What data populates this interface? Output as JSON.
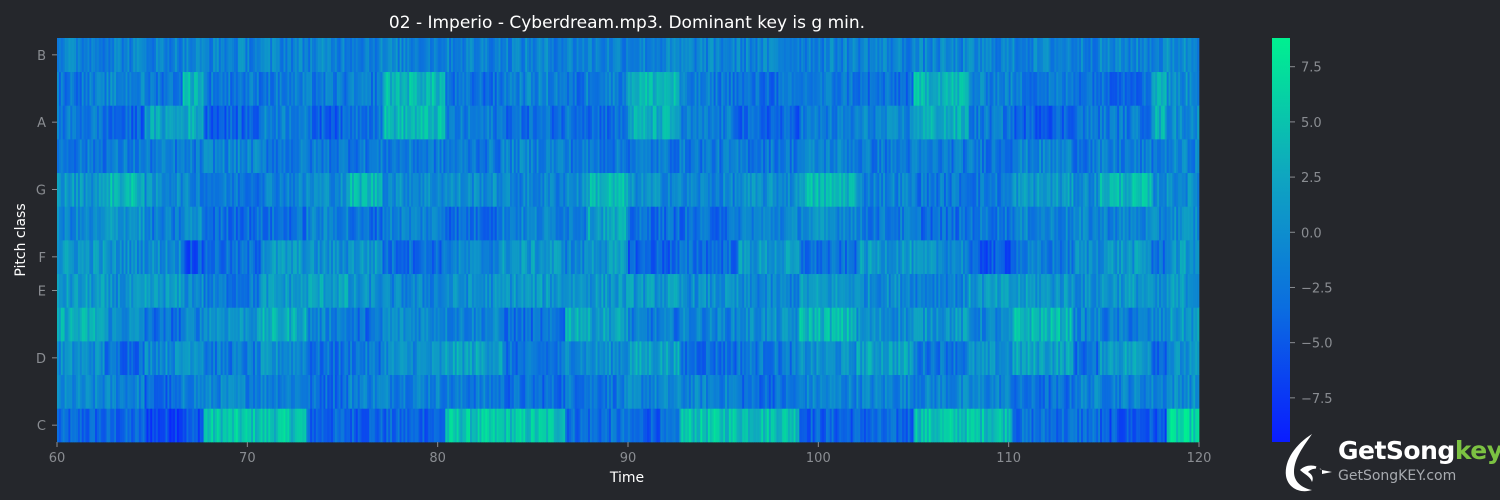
{
  "chart_data": {
    "type": "heatmap",
    "title": "02 - Imperio - Cyberdream.mp3. Dominant key is g min.",
    "xlabel": "Time",
    "ylabel": "Pitch class",
    "xlim": [
      60,
      120
    ],
    "x_ticks": [
      60,
      70,
      80,
      90,
      100,
      110,
      120
    ],
    "rows": [
      "C",
      "C#",
      "D",
      "D#",
      "E",
      "F",
      "F#",
      "G",
      "G#",
      "A",
      "A#",
      "B"
    ],
    "y_tick_labels": [
      "C",
      "D",
      "E",
      "F",
      "G",
      "A",
      "B"
    ],
    "colorbar": {
      "min": -9.5,
      "max": 8.8,
      "ticks": [
        7.5,
        5.0,
        2.5,
        0.0,
        -2.5,
        -5.0,
        -7.5
      ],
      "tick_labels": [
        "7.5",
        "5.0",
        "2.5",
        "0.0",
        "−2.5",
        "−5.0",
        "−7.5"
      ],
      "colormap": [
        "#0a1cff",
        "#0b6de0",
        "#0fa6c0",
        "#00f090"
      ]
    },
    "segments": [
      60,
      62.5,
      64.6,
      66.6,
      67.7,
      70.7,
      73.1,
      75.3,
      77.1,
      80.4,
      83.4,
      86.7,
      87.8,
      90,
      92.7,
      95.8,
      99,
      102,
      105,
      107.9,
      110.2,
      113.4,
      114.8,
      117.5,
      118.3,
      120
    ],
    "segment_rows": {
      "C": [
        -4,
        -4,
        -6,
        -5,
        5,
        5,
        -4,
        -4,
        -4,
        5,
        5,
        -3,
        -3,
        -4,
        5,
        5,
        -4,
        -4,
        5,
        5,
        -3,
        -3,
        -5,
        -5,
        6,
        6
      ],
      "C#": [
        -1,
        -1,
        -4,
        -1,
        -1,
        -1,
        -3,
        -1,
        -1,
        -2,
        -3,
        -2,
        -2,
        -1,
        -1,
        -3,
        -1,
        -1,
        -1,
        -1,
        -3,
        -1,
        -1,
        -1,
        0,
        0
      ],
      "D": [
        0,
        -3,
        0,
        2,
        -2,
        0,
        -3,
        -2,
        0,
        2,
        -3,
        0,
        0,
        2,
        -3,
        -2,
        0,
        2,
        -2,
        0,
        2,
        -3,
        2,
        -3,
        0,
        3
      ],
      "D#": [
        3,
        0,
        -3,
        -1,
        1,
        3,
        -1,
        -3,
        0,
        -1,
        -3,
        4,
        2,
        -2,
        -1,
        0,
        4,
        0,
        1,
        -1,
        4,
        -1,
        -2,
        -1,
        1,
        -4
      ],
      "E": [
        1,
        0,
        1,
        0,
        -2,
        1,
        2,
        0,
        -1,
        0,
        1,
        1,
        1,
        1,
        0,
        -1,
        1,
        0,
        -1,
        1,
        1,
        0,
        1,
        -1,
        1,
        0
      ],
      "F": [
        1,
        0,
        0,
        -5,
        -3,
        1,
        0,
        1,
        -3,
        -1,
        1,
        -1,
        1,
        -4,
        -3,
        1,
        -3,
        1,
        0,
        -5,
        -2,
        0,
        1,
        -3,
        1,
        -2
      ],
      "F#": [
        -1,
        1,
        -2,
        0,
        -3,
        -3,
        -1,
        -3,
        -1,
        -3,
        -1,
        -1,
        2,
        -3,
        -3,
        -1,
        0,
        -2,
        -3,
        -2,
        -1,
        -1,
        -1,
        -1,
        0,
        -2
      ],
      "G": [
        1,
        4,
        0,
        -1,
        -2,
        -1,
        0,
        4,
        0,
        0,
        -1,
        0,
        4,
        0,
        -1,
        0,
        4,
        -1,
        -2,
        -2,
        1,
        0,
        4,
        0,
        0,
        -1
      ],
      "G#": [
        -2,
        -2,
        -2,
        -2,
        -1,
        -2,
        -2,
        -2,
        -2,
        -2,
        -1,
        -2,
        -2,
        -2,
        -2,
        -2,
        -1,
        -2,
        -2,
        -2,
        -1,
        -2,
        -2,
        -2,
        -1,
        0
      ],
      "A": [
        -2,
        -4,
        2,
        3,
        -4,
        -1,
        -4,
        -2,
        4,
        -2,
        -3,
        -2,
        -3,
        3,
        -2,
        -4,
        -2,
        -1,
        3,
        -2,
        -4,
        -2,
        -2,
        3,
        0,
        -1
      ],
      "A#": [
        -2,
        -1,
        -2,
        4,
        -2,
        -2,
        -2,
        -2,
        4,
        -3,
        -1,
        -3,
        -1,
        4,
        -2,
        -3,
        -2,
        -3,
        4,
        -1,
        -2,
        -2,
        -3,
        4,
        0,
        -3
      ],
      "B": [
        -1,
        -1,
        -1,
        -1,
        -1,
        -1,
        -1,
        -1,
        -1,
        -1,
        -1,
        -1,
        -1,
        -1,
        -1,
        -1,
        -1,
        -1,
        -1,
        -1,
        -1,
        -1,
        -1,
        -1,
        0,
        -1
      ]
    },
    "grid": false,
    "legend": "colorbar-right"
  },
  "logo": {
    "name_main": "GetSong",
    "name_accent": "key",
    "url": "GetSongKEY.com",
    "icon": "bird-logo-icon"
  }
}
